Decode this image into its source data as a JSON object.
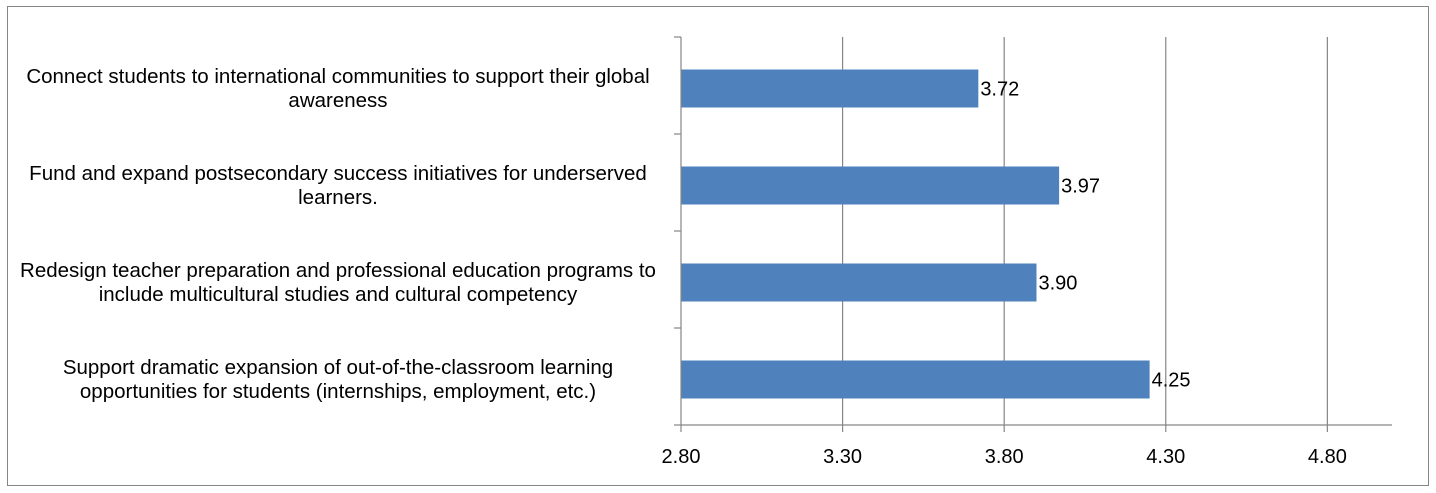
{
  "chart_data": {
    "type": "bar",
    "orientation": "horizontal",
    "categories": [
      "Connect students to international communities to support their global awareness",
      "Fund and expand postsecondary success initiatives for underserved learners.",
      "Redesign teacher preparation and professional education programs to include multicultural studies and cultural competency",
      "Support dramatic expansion of out-of-the-classroom learning opportunities for students (internships, employment, etc.)"
    ],
    "values": [
      3.72,
      3.97,
      3.9,
      4.25
    ],
    "data_labels": [
      "3.72",
      "3.97",
      "3.90",
      "4.25"
    ],
    "x_ticks": [
      "2.80",
      "3.30",
      "3.80",
      "4.30",
      "4.80"
    ],
    "xlim": [
      2.8,
      5.0
    ],
    "title": "",
    "xlabel": "",
    "ylabel": "",
    "grid": true,
    "legend": "none",
    "bar_color": "#4f81bd",
    "grid_color": "#868686"
  }
}
